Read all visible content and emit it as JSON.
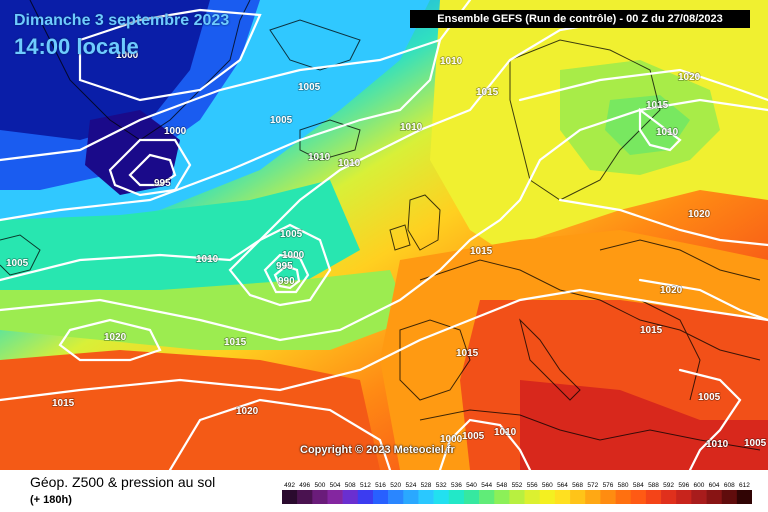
{
  "header": {
    "date": "Dimanche 3 septembre 2023",
    "time": "14:00 locale",
    "run": "Ensemble GEFS  (Run de contrôle)  -  00 Z du 27/08/2023"
  },
  "copyright": "Copyright © 2023 Meteociel.fr",
  "legend": {
    "title": "Géop. Z500 & pression au sol",
    "subtitle": "(+ 180h)",
    "scale_values": [
      492,
      496,
      500,
      504,
      508,
      512,
      516,
      520,
      524,
      528,
      532,
      536,
      540,
      544,
      548,
      552,
      556,
      560,
      564,
      568,
      572,
      576,
      580,
      584,
      588,
      592,
      596,
      600,
      604,
      608,
      612
    ],
    "scale_colors": [
      "#2a0a2e",
      "#4a1250",
      "#6a1c7a",
      "#8426a0",
      "#6a2fd0",
      "#3c3cf0",
      "#2860ff",
      "#2a86ff",
      "#2aa8ff",
      "#2ac8ff",
      "#22e0f0",
      "#22e8c8",
      "#36e8a0",
      "#60ec78",
      "#8cf058",
      "#b8f040",
      "#dcf030",
      "#f4f020",
      "#ffe020",
      "#ffc418",
      "#ffa814",
      "#ff8c10",
      "#ff7010",
      "#ff5a14",
      "#f44418",
      "#e0301c",
      "#c8241c",
      "#a81c1c",
      "#881414",
      "#600c0c",
      "#300404"
    ]
  },
  "isobars": [
    {
      "id": "l-1000-nw",
      "text": "1000"
    },
    {
      "id": "l-1005-nw",
      "text": "1005"
    },
    {
      "id": "l-1000-ice",
      "text": "1000"
    },
    {
      "id": "l-995-ice",
      "text": "995"
    },
    {
      "id": "l-1005-ice",
      "text": "1005"
    },
    {
      "id": "l-1010-ice",
      "text": "1010"
    },
    {
      "id": "l-1010-ice2",
      "text": "1010"
    },
    {
      "id": "l-1010-top",
      "text": "1010"
    },
    {
      "id": "l-1015-top",
      "text": "1015"
    },
    {
      "id": "l-1010-mid",
      "text": "1010"
    },
    {
      "id": "l-1020-ne",
      "text": "1020"
    },
    {
      "id": "l-1015-nor",
      "text": "1015"
    },
    {
      "id": "l-1010-fin",
      "text": "1010"
    },
    {
      "id": "l-1020-east",
      "text": "1020"
    },
    {
      "id": "l-1020-east2",
      "text": "1020"
    },
    {
      "id": "l-1015-fr",
      "text": "1015"
    },
    {
      "id": "l-1015-bal",
      "text": "1015"
    },
    {
      "id": "l-1005-w",
      "text": "1005"
    },
    {
      "id": "l-1010-atl",
      "text": "1010"
    },
    {
      "id": "l-1005-atl",
      "text": "1005"
    },
    {
      "id": "l-1000-atl",
      "text": "1000"
    },
    {
      "id": "l-995-atl",
      "text": "995"
    },
    {
      "id": "l-990-atl",
      "text": "990"
    },
    {
      "id": "l-1020-w",
      "text": "1020"
    },
    {
      "id": "l-1015-azo",
      "text": "1015"
    },
    {
      "id": "l-1015-sw",
      "text": "1015"
    },
    {
      "id": "l-1020-s",
      "text": "1020"
    },
    {
      "id": "l-1015-ib",
      "text": "1015"
    },
    {
      "id": "l-1000-af",
      "text": "1000"
    },
    {
      "id": "l-1005-af",
      "text": "1005"
    },
    {
      "id": "l-1010-af",
      "text": "1010"
    },
    {
      "id": "l-1005-se",
      "text": "1005"
    },
    {
      "id": "l-1010-se",
      "text": "1010"
    },
    {
      "id": "l-1005-se2",
      "text": "1005"
    }
  ]
}
